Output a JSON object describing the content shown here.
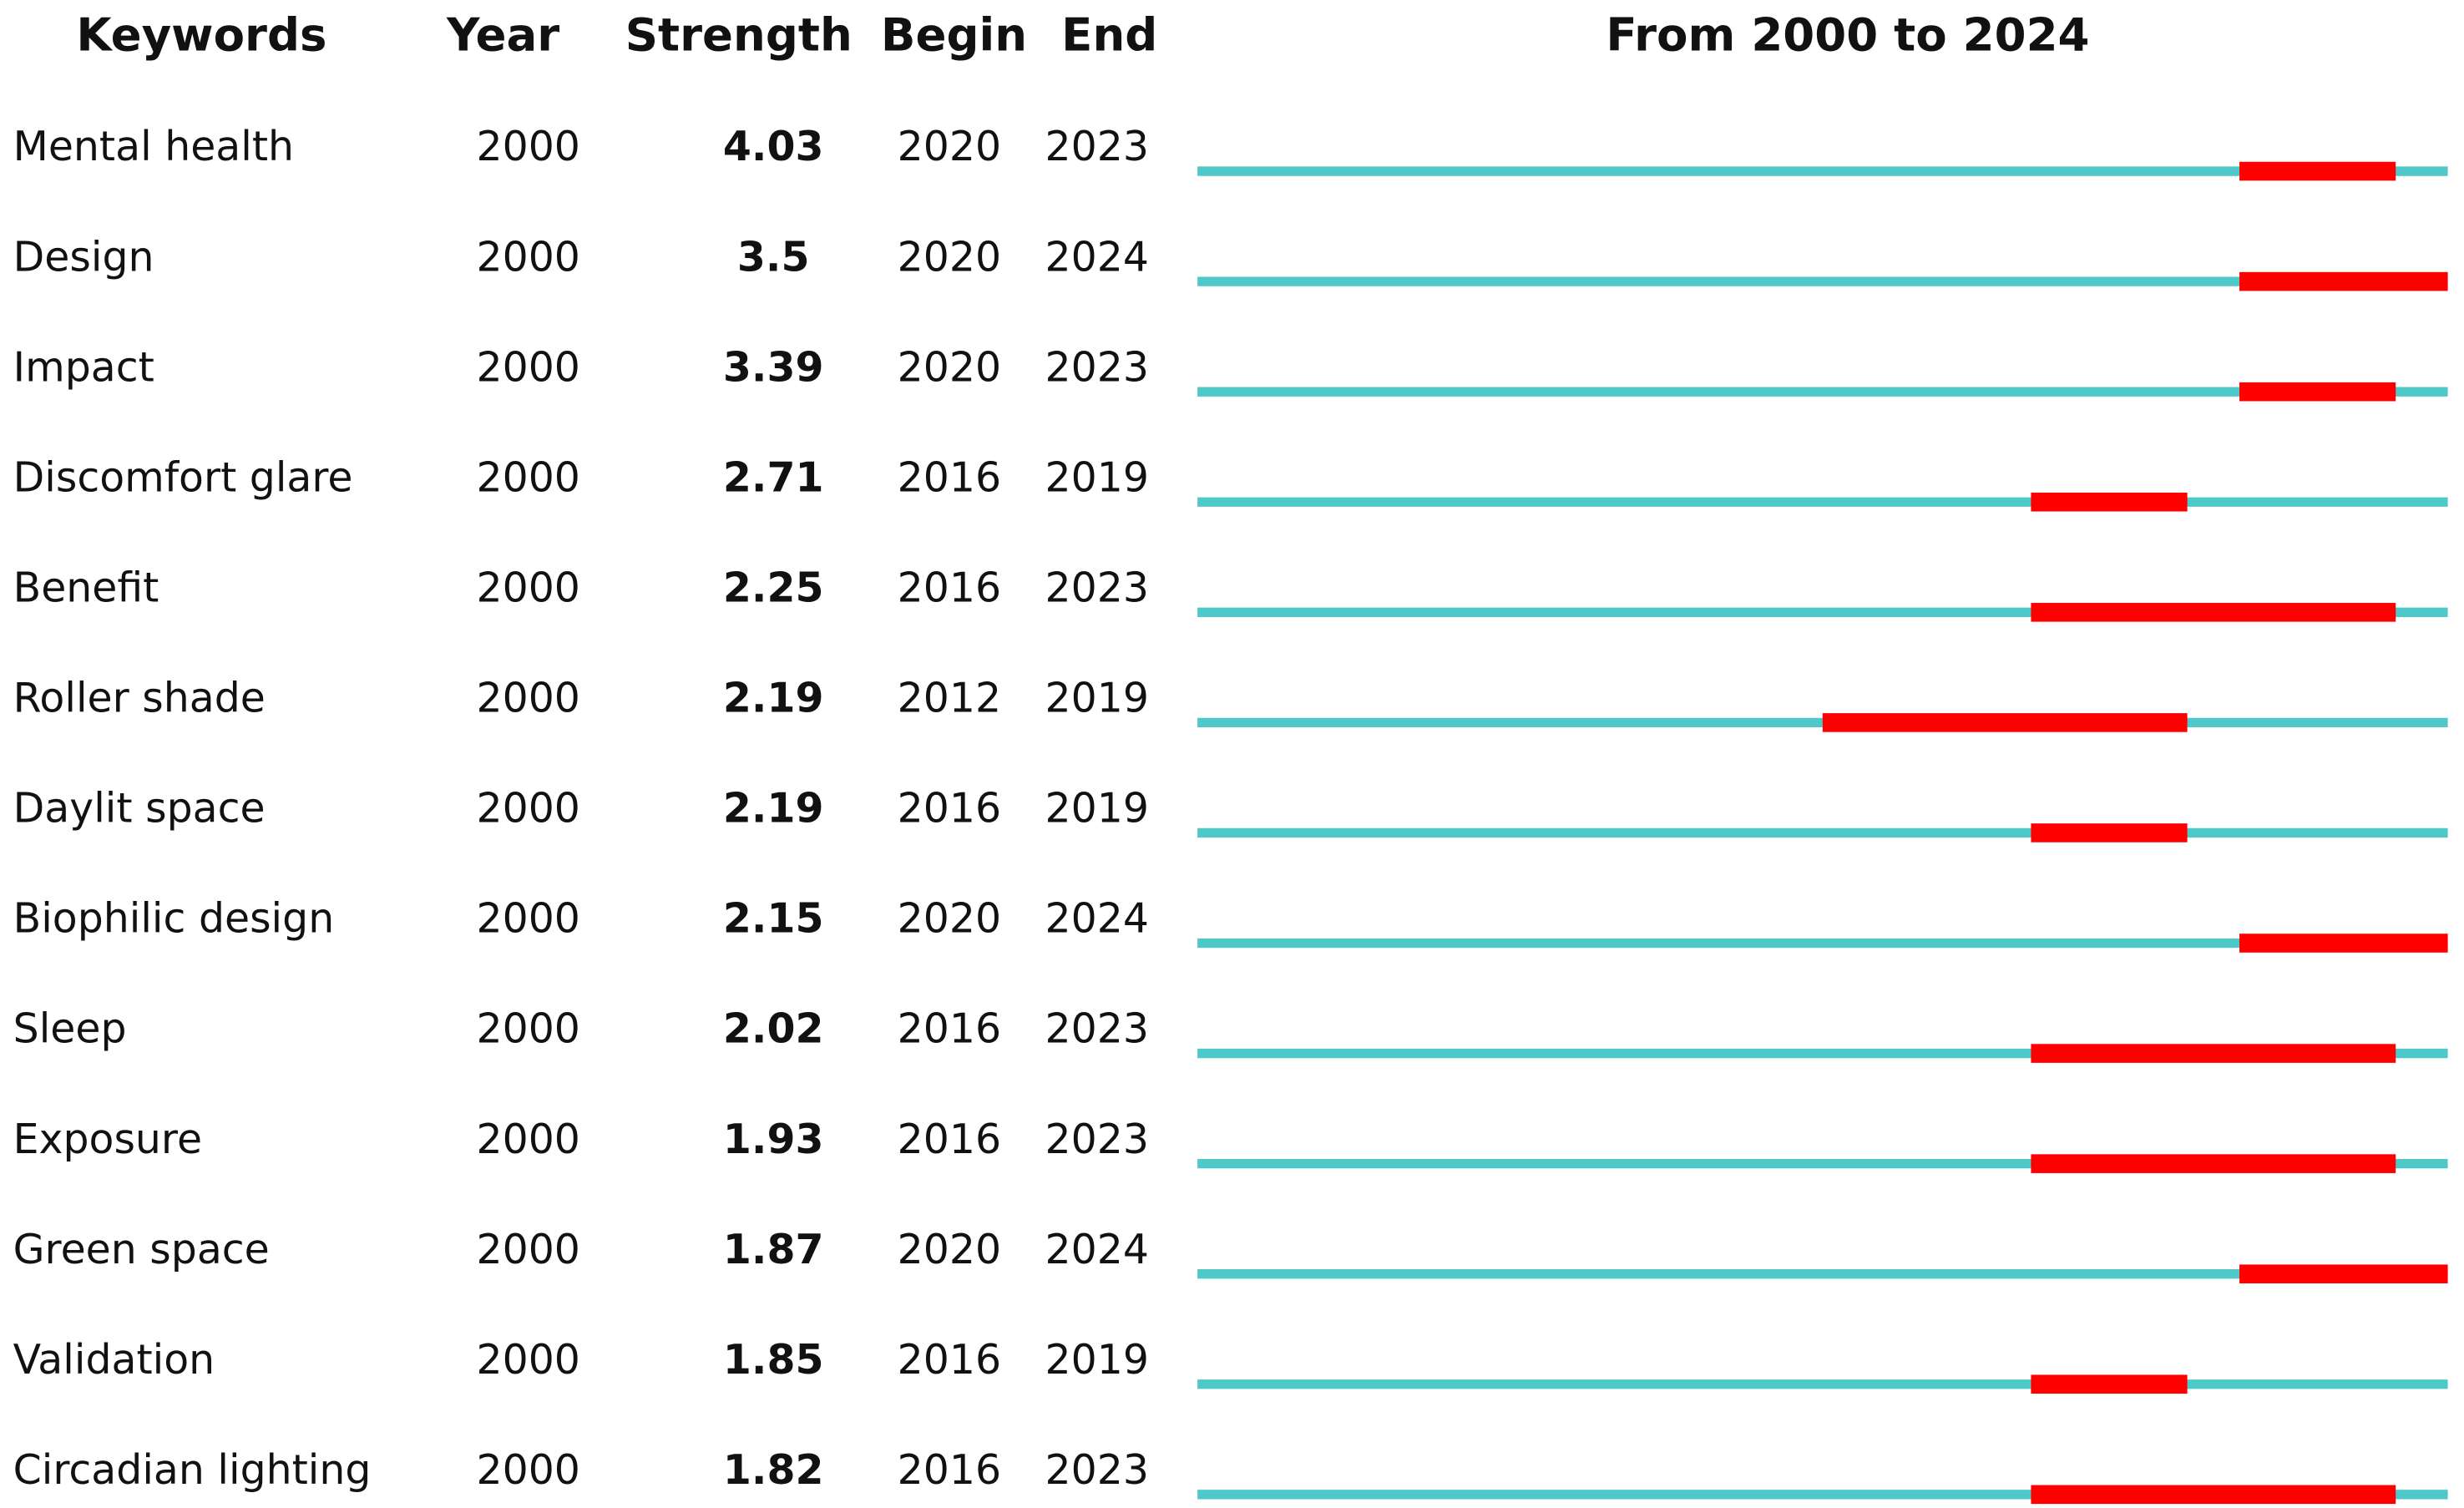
{
  "chart_data": {
    "type": "burst",
    "title": "From 2000 to 2024",
    "columns": [
      "Keywords",
      "Year",
      "Strength",
      "Begin",
      "End"
    ],
    "xlim": [
      2000,
      2024
    ],
    "colors": {
      "base": "#4fc8c8",
      "burst": "#ff0000"
    },
    "rows": [
      {
        "keyword": "Mental health",
        "year": 2000,
        "strength": 4.03,
        "begin": 2020,
        "end": 2023
      },
      {
        "keyword": "Design",
        "year": 2000,
        "strength": 3.5,
        "begin": 2020,
        "end": 2024
      },
      {
        "keyword": "Impact",
        "year": 2000,
        "strength": 3.39,
        "begin": 2020,
        "end": 2023
      },
      {
        "keyword": "Discomfort glare",
        "year": 2000,
        "strength": 2.71,
        "begin": 2016,
        "end": 2019
      },
      {
        "keyword": "Benefit",
        "year": 2000,
        "strength": 2.25,
        "begin": 2016,
        "end": 2023
      },
      {
        "keyword": "Roller shade",
        "year": 2000,
        "strength": 2.19,
        "begin": 2012,
        "end": 2019
      },
      {
        "keyword": "Daylit space",
        "year": 2000,
        "strength": 2.19,
        "begin": 2016,
        "end": 2019
      },
      {
        "keyword": "Biophilic design",
        "year": 2000,
        "strength": 2.15,
        "begin": 2020,
        "end": 2024
      },
      {
        "keyword": "Sleep",
        "year": 2000,
        "strength": 2.02,
        "begin": 2016,
        "end": 2023
      },
      {
        "keyword": "Exposure",
        "year": 2000,
        "strength": 1.93,
        "begin": 2016,
        "end": 2023
      },
      {
        "keyword": "Green space",
        "year": 2000,
        "strength": 1.87,
        "begin": 2020,
        "end": 2024
      },
      {
        "keyword": "Validation",
        "year": 2000,
        "strength": 1.85,
        "begin": 2016,
        "end": 2019
      },
      {
        "keyword": "Circadian lighting",
        "year": 2000,
        "strength": 1.82,
        "begin": 2016,
        "end": 2023
      }
    ]
  }
}
